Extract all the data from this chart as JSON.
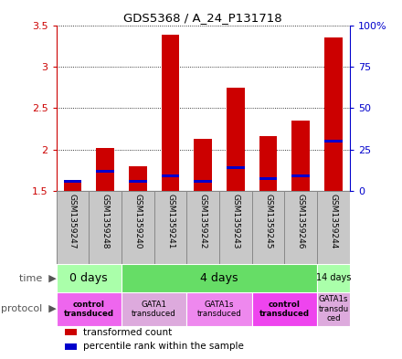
{
  "title": "GDS5368 / A_24_P131718",
  "samples": [
    "GSM1359247",
    "GSM1359248",
    "GSM1359240",
    "GSM1359241",
    "GSM1359242",
    "GSM1359243",
    "GSM1359245",
    "GSM1359246",
    "GSM1359244"
  ],
  "red_values": [
    1.6,
    2.02,
    1.8,
    3.38,
    2.13,
    2.75,
    2.16,
    2.35,
    3.35
  ],
  "blue_values": [
    1.62,
    1.74,
    1.62,
    1.68,
    1.62,
    1.78,
    1.65,
    1.68,
    2.1
  ],
  "bar_base": 1.5,
  "ylim": [
    1.5,
    3.5
  ],
  "yticks_left": [
    1.5,
    2.0,
    2.5,
    3.0,
    3.5
  ],
  "ytick_labels_left": [
    "1.5",
    "2",
    "2.5",
    "3",
    "3.5"
  ],
  "yticks_right_pct": [
    0,
    25,
    50,
    75,
    100
  ],
  "ytick_labels_right": [
    "0",
    "25",
    "50",
    "75",
    "100%"
  ],
  "left_axis_color": "#cc0000",
  "right_axis_color": "#0000cc",
  "bar_red_color": "#cc0000",
  "bar_blue_color": "#0000cc",
  "sample_label_bg": "#c8c8c8",
  "sample_label_border": "#888888",
  "time_groups": [
    {
      "label": "0 days",
      "start": 0,
      "end": 2,
      "color": "#aaffaa"
    },
    {
      "label": "4 days",
      "start": 2,
      "end": 8,
      "color": "#66dd66"
    },
    {
      "label": "14 days",
      "start": 8,
      "end": 9,
      "color": "#aaffaa"
    }
  ],
  "protocol_groups": [
    {
      "label": "control\ntransduced",
      "start": 0,
      "end": 2,
      "color": "#ee66ee",
      "bold": true
    },
    {
      "label": "GATA1\ntransduced",
      "start": 2,
      "end": 4,
      "color": "#ddaadd",
      "bold": false
    },
    {
      "label": "GATA1s\ntransduced",
      "start": 4,
      "end": 6,
      "color": "#ee88ee",
      "bold": false
    },
    {
      "label": "control\ntransduced",
      "start": 6,
      "end": 8,
      "color": "#ee44ee",
      "bold": true
    },
    {
      "label": "GATA1s\ntransdu\nced",
      "start": 8,
      "end": 9,
      "color": "#ddaadd",
      "bold": false
    }
  ],
  "legend_items": [
    {
      "color": "#cc0000",
      "label": "transformed count"
    },
    {
      "color": "#0000cc",
      "label": "percentile rank within the sample"
    }
  ],
  "bar_width": 0.55,
  "blue_bar_height": 0.035
}
